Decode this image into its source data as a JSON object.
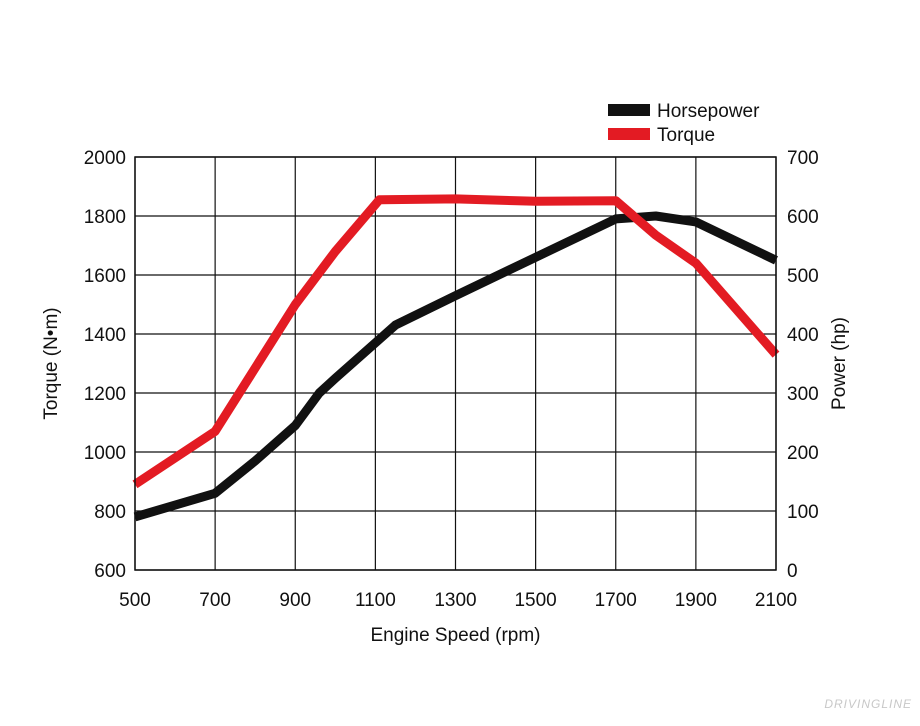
{
  "chart_data": {
    "type": "line",
    "title": "",
    "xlabel": "Engine Speed (rpm)",
    "ylabel_left": "Torque (N•m)",
    "ylabel_right": "Power (hp)",
    "xlim": [
      500,
      2100
    ],
    "ylim_left": [
      600,
      2000
    ],
    "ylim_right": [
      0,
      700
    ],
    "x_ticks": [
      500,
      700,
      900,
      1100,
      1300,
      1500,
      1700,
      1900,
      2100
    ],
    "y_ticks_left": [
      600,
      800,
      1000,
      1200,
      1400,
      1600,
      1800,
      2000
    ],
    "y_ticks_right": [
      0,
      100,
      200,
      300,
      400,
      500,
      600,
      700
    ],
    "grid": true,
    "legend_position": "top-right",
    "series": [
      {
        "name": "Horsepower",
        "axis": "right",
        "color": "#111111",
        "x": [
          500,
          700,
          800,
          900,
          960,
          1000,
          1150,
          1300,
          1500,
          1700,
          1800,
          1900,
          2100
        ],
        "y": [
          90,
          130,
          185,
          245,
          300,
          325,
          415,
          465,
          530,
          595,
          600,
          590,
          525
        ]
      },
      {
        "name": "Torque",
        "axis": "left",
        "color": "#e31b23",
        "x": [
          500,
          700,
          900,
          1000,
          1110,
          1300,
          1500,
          1700,
          1800,
          1900,
          2100
        ],
        "y": [
          890,
          1070,
          1500,
          1680,
          1855,
          1858,
          1850,
          1852,
          1735,
          1640,
          1330
        ]
      }
    ]
  },
  "watermark": "DRIVINGLINE"
}
